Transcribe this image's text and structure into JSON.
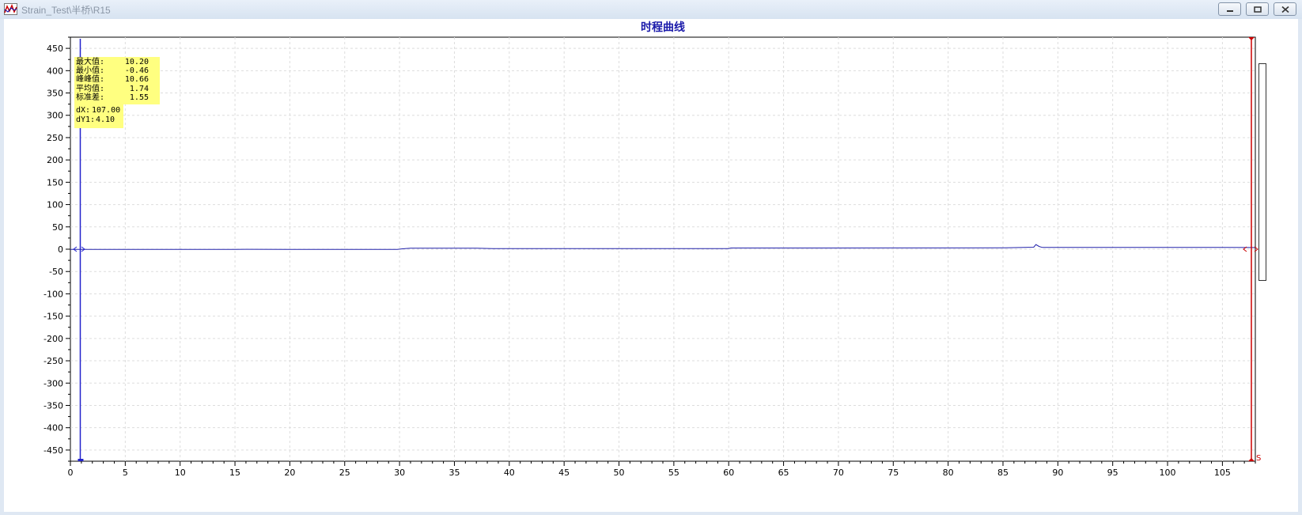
{
  "window": {
    "title": "Strain_Test\\半桥\\R15",
    "icon": "chart-app-icon"
  },
  "controls": {
    "minimize": "minimize-icon",
    "restore": "restore-icon",
    "close": "close-icon"
  },
  "stats": {
    "max_label": "最大值:",
    "max_value": "10.20",
    "min_label": "最小值:",
    "min_value": "-0.46",
    "pp_label": "峰峰值:",
    "pp_value": "10.66",
    "avg_label": "平均值:",
    "avg_value": "1.74",
    "std_label": "标准差:",
    "std_value": "1.55",
    "dx_label": "dX:",
    "dx_value": "107.00",
    "dy_label": "dY1:",
    "dy_value": "4.10"
  },
  "cursor": {
    "marker_label": "S"
  },
  "colors": {
    "series": "#2222aa",
    "cursor_right": "#cc0000",
    "cursor_left": "#2222cc",
    "title": "#1a1aaa",
    "stats_bg": "#ffff80"
  },
  "chart_data": {
    "type": "line",
    "title": "时程曲线",
    "xlim": [
      0,
      108
    ],
    "ylim": [
      -475,
      475
    ],
    "x_ticks": [
      0,
      5,
      10,
      15,
      20,
      25,
      30,
      35,
      40,
      45,
      50,
      55,
      60,
      65,
      70,
      75,
      80,
      85,
      90,
      95,
      100,
      105
    ],
    "y_ticks": [
      450,
      400,
      350,
      300,
      250,
      200,
      150,
      100,
      50,
      0,
      -50,
      -100,
      -150,
      -200,
      -250,
      -300,
      -350,
      -400,
      -450
    ],
    "grid": true,
    "series": [
      {
        "x": [
          0,
          5,
          9.8,
          10,
          10.2,
          12,
          15,
          16,
          20,
          22,
          25,
          29.8,
          30.5,
          31,
          35,
          37,
          38.5,
          40,
          45,
          50,
          55,
          60,
          60.2,
          65,
          70,
          75,
          80,
          85,
          87.8,
          88,
          88.3,
          88.6,
          90,
          95,
          100,
          105,
          108
        ],
        "y": [
          -0.3,
          -0.3,
          -0.4,
          -0.2,
          -0.4,
          -0.3,
          -0.3,
          -0.2,
          -0.3,
          -0.3,
          -0.3,
          -0.3,
          1.5,
          2.2,
          2.3,
          2.2,
          1.4,
          1.2,
          1.2,
          1.3,
          1.3,
          1.4,
          2.6,
          2.6,
          2.7,
          2.8,
          2.9,
          3.0,
          4.5,
          10.2,
          6.0,
          3.9,
          3.9,
          3.9,
          3.9,
          3.9,
          3.8
        ]
      }
    ]
  }
}
